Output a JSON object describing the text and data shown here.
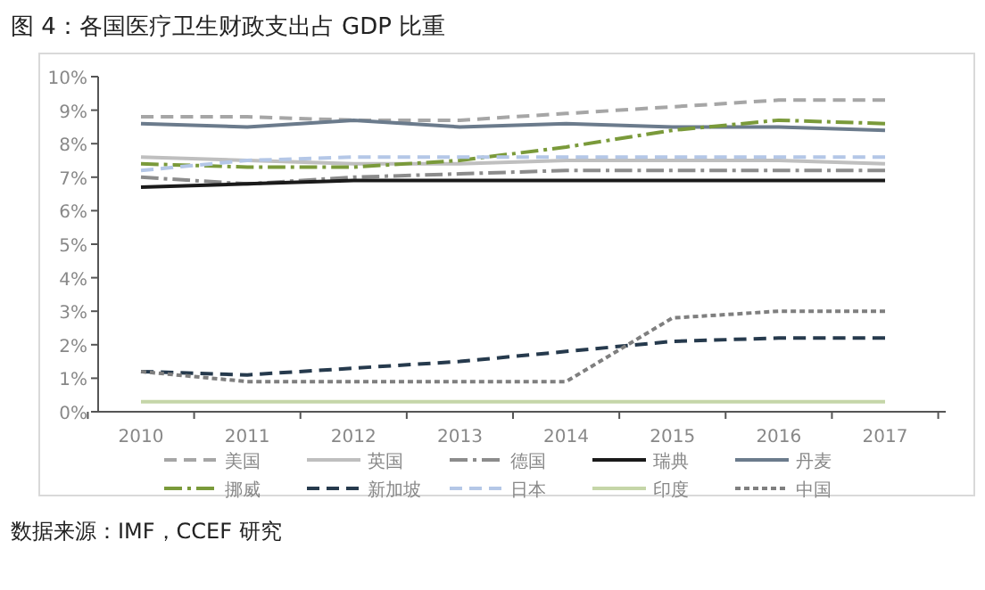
{
  "chart_data": {
    "type": "line",
    "title": "图 4：各国医疗卫生财政支出占 GDP 比重",
    "annotations": [
      "数据来源：IMF，CCEF 研究"
    ],
    "categories": [
      "2010",
      "2011",
      "2012",
      "2013",
      "2014",
      "2015",
      "2016",
      "2017"
    ],
    "ylim": [
      0,
      10
    ],
    "yticks": [
      {
        "value": 0,
        "label": "0%"
      },
      {
        "value": 1,
        "label": "1%"
      },
      {
        "value": 2,
        "label": "2%"
      },
      {
        "value": 3,
        "label": "3%"
      },
      {
        "value": 4,
        "label": "4%"
      },
      {
        "value": 5,
        "label": "5%"
      },
      {
        "value": 6,
        "label": "6%"
      },
      {
        "value": 7,
        "label": "7%"
      },
      {
        "value": 8,
        "label": "8%"
      },
      {
        "value": 9,
        "label": "9%"
      },
      {
        "value": 10,
        "label": "10%"
      }
    ],
    "legend": "bottom",
    "marker": "none",
    "series": [
      {
        "name": "美国",
        "color": "#a6a6a6",
        "line_style": "dashed",
        "values": [
          8.8,
          8.8,
          8.7,
          8.7,
          8.9,
          9.1,
          9.3,
          9.3
        ]
      },
      {
        "name": "英国",
        "color": "#bfbfbf",
        "line_style": "solid",
        "values": [
          7.6,
          7.5,
          7.4,
          7.4,
          7.5,
          7.5,
          7.5,
          7.4
        ]
      },
      {
        "name": "德国",
        "color": "#8c8c8c",
        "line_style": "dashdot",
        "values": [
          7.0,
          6.8,
          7.0,
          7.1,
          7.2,
          7.2,
          7.2,
          7.2
        ]
      },
      {
        "name": "瑞典",
        "color": "#1a1a1a",
        "line_style": "solid",
        "values": [
          6.7,
          6.8,
          6.9,
          6.9,
          6.9,
          6.9,
          6.9,
          6.9
        ]
      },
      {
        "name": "丹麦",
        "color": "#6b7b8c",
        "line_style": "solid",
        "values": [
          8.6,
          8.5,
          8.7,
          8.5,
          8.6,
          8.5,
          8.5,
          8.4
        ]
      },
      {
        "name": "挪威",
        "color": "#7a9a3a",
        "line_style": "dashdot",
        "values": [
          7.4,
          7.3,
          7.3,
          7.5,
          7.9,
          8.4,
          8.7,
          8.6
        ]
      },
      {
        "name": "新加坡",
        "color": "#263a4d",
        "line_style": "dashed",
        "values": [
          1.2,
          1.1,
          1.3,
          1.5,
          1.8,
          2.1,
          2.2,
          2.2
        ]
      },
      {
        "name": "日本",
        "color": "#b4c7e7",
        "line_style": "dashed",
        "values": [
          7.2,
          7.5,
          7.6,
          7.6,
          7.6,
          7.6,
          7.6,
          7.6
        ]
      },
      {
        "name": "印度",
        "color": "#c5d6a8",
        "line_style": "solid",
        "values": [
          0.3,
          0.3,
          0.3,
          0.3,
          0.3,
          0.3,
          0.3,
          0.3
        ]
      },
      {
        "name": "中国",
        "color": "#7f7f7f",
        "line_style": "dotted",
        "values": [
          1.2,
          0.9,
          0.9,
          0.9,
          0.9,
          2.8,
          3.0,
          3.0
        ]
      }
    ]
  }
}
